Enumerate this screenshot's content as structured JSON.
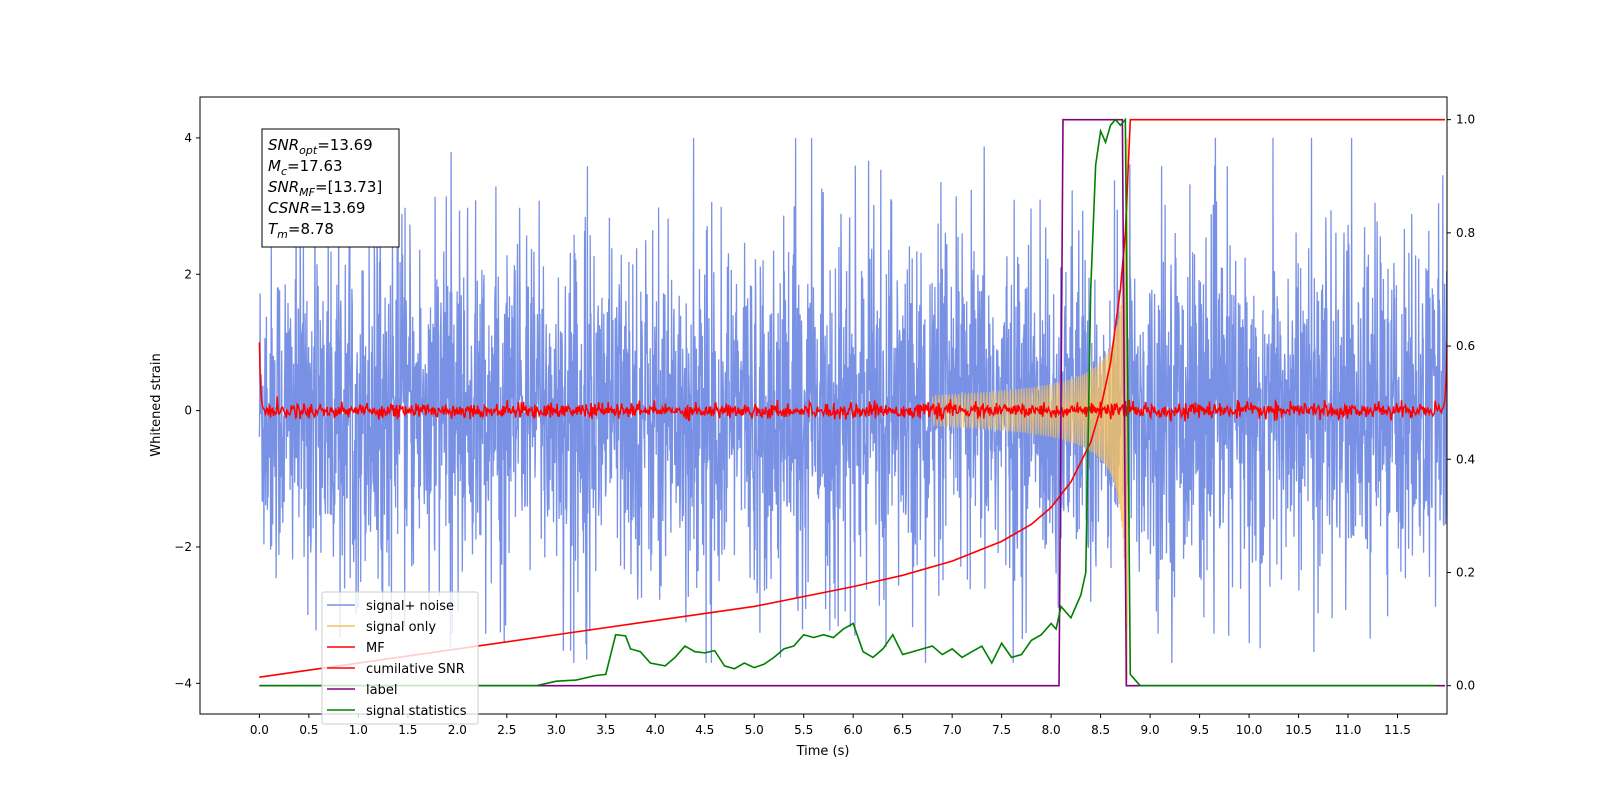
{
  "chart_data": {
    "type": "line",
    "xlabel": "Time (s)",
    "ylabel": "Whitened strain",
    "xlim": [
      -0.6,
      12.0
    ],
    "ylim": [
      -4.45,
      4.6
    ],
    "y2lim": [
      -0.05,
      1.04
    ],
    "x_ticks": [
      "0.0",
      "0.5",
      "1.0",
      "1.5",
      "2.0",
      "2.5",
      "3.0",
      "3.5",
      "4.0",
      "4.5",
      "5.0",
      "5.5",
      "6.0",
      "6.5",
      "7.0",
      "7.5",
      "8.0",
      "8.5",
      "9.0",
      "9.5",
      "10.0",
      "10.5",
      "11.0",
      "11.5"
    ],
    "y_ticks": [
      "4",
      "2",
      "0",
      "−2",
      "−4"
    ],
    "y2_ticks": [
      "1.0",
      "0.8",
      "0.6",
      "0.4",
      "0.2",
      "0.0"
    ],
    "legend_position": "lower-left",
    "info_box": {
      "lines": [
        {
          "sym": "SNR",
          "sub": "opt",
          "value": "=13.69"
        },
        {
          "sym": "M",
          "sub": "c",
          "value": "=17.63"
        },
        {
          "sym": "SNR",
          "sub": "MF",
          "value": "=[13.73]"
        },
        {
          "sym": "CSNR",
          "sub": "",
          "value": "=13.69"
        },
        {
          "sym": "T",
          "sub": "m",
          "value": "=8.78"
        }
      ]
    },
    "series": [
      {
        "name": "signal+ noise",
        "color": "#7891e5",
        "axis": "left",
        "kind": "noise",
        "x_range": [
          0.0,
          12.0
        ],
        "approx_amplitude": 1.3,
        "outlier_extent": [
          -3.7,
          4.0
        ]
      },
      {
        "name": "signal only",
        "color": "#f5c060",
        "axis": "left",
        "kind": "chirp",
        "x_range": [
          6.8,
          8.78
        ],
        "peak_amplitude": 4.0
      },
      {
        "name": "MF",
        "color": "#ff0000",
        "axis": "left",
        "kind": "matched-filter",
        "x_range": [
          0.0,
          12.0
        ],
        "baseline": 0.0,
        "edge_values": [
          1.0,
          1.0
        ]
      },
      {
        "name": "cumilative SNR",
        "color": "#ff0000",
        "axis": "right",
        "x": [
          0.0,
          1.0,
          2.0,
          3.0,
          4.0,
          5.0,
          6.0,
          6.5,
          7.0,
          7.5,
          7.8,
          8.0,
          8.2,
          8.4,
          8.5,
          8.6,
          8.7,
          8.75,
          8.8,
          9.0,
          11.98
        ],
        "values": [
          0.015,
          0.04,
          0.065,
          0.09,
          0.115,
          0.14,
          0.175,
          0.195,
          0.22,
          0.255,
          0.285,
          0.315,
          0.36,
          0.43,
          0.49,
          0.57,
          0.7,
          0.8,
          1.0,
          1.0,
          1.0
        ]
      },
      {
        "name": "label",
        "color": "#800080",
        "axis": "right",
        "x": [
          0.0,
          8.08,
          8.12,
          8.72,
          8.76,
          11.98
        ],
        "values": [
          0.0,
          0.0,
          1.0,
          1.0,
          0.0,
          0.0
        ]
      },
      {
        "name": "signal statistics",
        "color": "#008000",
        "axis": "right",
        "x": [
          0.0,
          2.8,
          3.0,
          3.2,
          3.4,
          3.5,
          3.6,
          3.7,
          3.75,
          3.85,
          3.95,
          4.1,
          4.2,
          4.3,
          4.4,
          4.5,
          4.6,
          4.7,
          4.8,
          4.9,
          5.0,
          5.1,
          5.2,
          5.3,
          5.4,
          5.5,
          5.6,
          5.7,
          5.8,
          5.9,
          6.0,
          6.1,
          6.2,
          6.3,
          6.4,
          6.5,
          6.6,
          6.7,
          6.8,
          6.9,
          7.0,
          7.1,
          7.2,
          7.3,
          7.4,
          7.5,
          7.6,
          7.7,
          7.8,
          7.9,
          8.0,
          8.05,
          8.1,
          8.2,
          8.3,
          8.35,
          8.4,
          8.45,
          8.5,
          8.55,
          8.6,
          8.65,
          8.7,
          8.75,
          8.8,
          8.85,
          8.9,
          11.9
        ],
        "values": [
          0.0,
          0.0,
          0.008,
          0.01,
          0.018,
          0.02,
          0.09,
          0.088,
          0.065,
          0.06,
          0.04,
          0.035,
          0.05,
          0.07,
          0.06,
          0.058,
          0.062,
          0.035,
          0.03,
          0.04,
          0.032,
          0.038,
          0.05,
          0.065,
          0.07,
          0.09,
          0.085,
          0.09,
          0.085,
          0.1,
          0.11,
          0.06,
          0.05,
          0.065,
          0.09,
          0.055,
          0.06,
          0.065,
          0.07,
          0.055,
          0.065,
          0.05,
          0.06,
          0.07,
          0.04,
          0.075,
          0.05,
          0.055,
          0.08,
          0.09,
          0.11,
          0.1,
          0.14,
          0.12,
          0.16,
          0.2,
          0.7,
          0.92,
          0.98,
          0.96,
          0.99,
          1.0,
          0.99,
          1.0,
          0.02,
          0.01,
          0.0,
          0.0
        ]
      }
    ]
  }
}
